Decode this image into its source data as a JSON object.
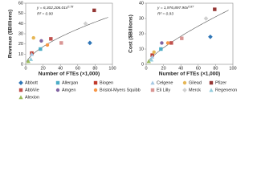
{
  "chart_data": [
    {
      "type": "scatter",
      "xlabel": "Number of FTEs (×1,000)",
      "ylabel": "Revenue ($Billions)",
      "equation": "y = 6,302,206.01x",
      "equation_exponent": "0.78",
      "r2": "R² = 0.90",
      "xlim": [
        0,
        100
      ],
      "xticks": [
        0,
        20,
        40,
        60,
        80,
        100
      ],
      "ylim": [
        0,
        60
      ],
      "yticks": [
        0,
        10,
        20,
        30,
        40,
        50,
        60
      ],
      "trendline": "power",
      "series": [
        {
          "name": "Abbott",
          "color": "#2e75b6",
          "marker": "diamond",
          "x": [
            74
          ],
          "values": [
            21
          ]
        },
        {
          "name": "AbbVie",
          "color": "#c0504d",
          "marker": "square",
          "x": [
            29
          ],
          "values": [
            25
          ]
        },
        {
          "name": "Alexion",
          "color": "#9bbb59",
          "marker": "triangle",
          "x": [
            3
          ],
          "values": [
            3
          ]
        },
        {
          "name": "Allergan",
          "color": "#4bacc6",
          "marker": "square",
          "x": [
            17
          ],
          "values": [
            15
          ]
        },
        {
          "name": "Amgen",
          "color": "#8064a2",
          "marker": "circle",
          "x": [
            18
          ],
          "values": [
            23
          ]
        },
        {
          "name": "Biogen",
          "color": "#c0392b",
          "marker": "square",
          "x": [
            7
          ],
          "values": [
            11
          ]
        },
        {
          "name": "Bristol-Myers Squibb",
          "color": "#f79646",
          "marker": "circle",
          "x": [
            25
          ],
          "values": [
            19
          ]
        },
        {
          "name": "Celgene",
          "color": "#a5c8e4",
          "marker": "triangle",
          "x": [
            7
          ],
          "values": [
            10
          ]
        },
        {
          "name": "Eli Lilly",
          "color": "#d99694",
          "marker": "square",
          "x": [
            41
          ],
          "values": [
            21
          ]
        },
        {
          "name": "Gilead",
          "color": "#e6b655",
          "marker": "circle",
          "x": [
            9
          ],
          "values": [
            26
          ]
        },
        {
          "name": "Merck",
          "color": "#d0d0d0",
          "marker": "diamond",
          "x": [
            69
          ],
          "values": [
            40
          ]
        },
        {
          "name": "Pfizer",
          "color": "#943634",
          "marker": "square",
          "x": [
            79
          ],
          "values": [
            53
          ]
        },
        {
          "name": "Regeneron",
          "color": "#93cddd",
          "marker": "triangle",
          "x": [
            6
          ],
          "values": [
            5
          ]
        }
      ]
    },
    {
      "type": "scatter",
      "xlabel": "Number of FTEs (×1,000)",
      "ylabel": "Cost ($Billions)",
      "equation": "y = 1,976,897.90x",
      "equation_exponent": "0.87",
      "r2": "R² = 0.93",
      "xlim": [
        0,
        100
      ],
      "xticks": [
        0,
        20,
        40,
        60,
        80,
        100
      ],
      "ylim": [
        0,
        40
      ],
      "yticks": [
        0,
        10,
        20,
        30,
        40
      ],
      "trendline": "power",
      "series": [
        {
          "name": "Abbott",
          "color": "#2e75b6",
          "marker": "diamond",
          "x": [
            74
          ],
          "values": [
            18
          ]
        },
        {
          "name": "AbbVie",
          "color": "#c0504d",
          "marker": "square",
          "x": [
            29
          ],
          "values": [
            14
          ]
        },
        {
          "name": "Alexion",
          "color": "#9bbb59",
          "marker": "triangle",
          "x": [
            3
          ],
          "values": [
            2
          ]
        },
        {
          "name": "Allergan",
          "color": "#4bacc6",
          "marker": "square",
          "x": [
            17
          ],
          "values": [
            10
          ]
        },
        {
          "name": "Amgen",
          "color": "#8064a2",
          "marker": "circle",
          "x": [
            18
          ],
          "values": [
            14
          ]
        },
        {
          "name": "Biogen",
          "color": "#c0392b",
          "marker": "square",
          "x": [
            7
          ],
          "values": [
            6
          ]
        },
        {
          "name": "Bristol-Myers Squibb",
          "color": "#f79646",
          "marker": "circle",
          "x": [
            25
          ],
          "values": [
            14
          ]
        },
        {
          "name": "Celgene",
          "color": "#a5c8e4",
          "marker": "triangle",
          "x": [
            7
          ],
          "values": [
            5
          ]
        },
        {
          "name": "Eli Lilly",
          "color": "#d99694",
          "marker": "square",
          "x": [
            41
          ],
          "values": [
            17
          ]
        },
        {
          "name": "Gilead",
          "color": "#e6b655",
          "marker": "circle",
          "x": [
            9
          ],
          "values": [
            8
          ]
        },
        {
          "name": "Merck",
          "color": "#d0d0d0",
          "marker": "diamond",
          "x": [
            69
          ],
          "values": [
            30
          ]
        },
        {
          "name": "Pfizer",
          "color": "#943634",
          "marker": "square",
          "x": [
            79
          ],
          "values": [
            36
          ]
        },
        {
          "name": "Regeneron",
          "color": "#93cddd",
          "marker": "triangle",
          "x": [
            6
          ],
          "values": [
            3
          ]
        }
      ]
    }
  ]
}
